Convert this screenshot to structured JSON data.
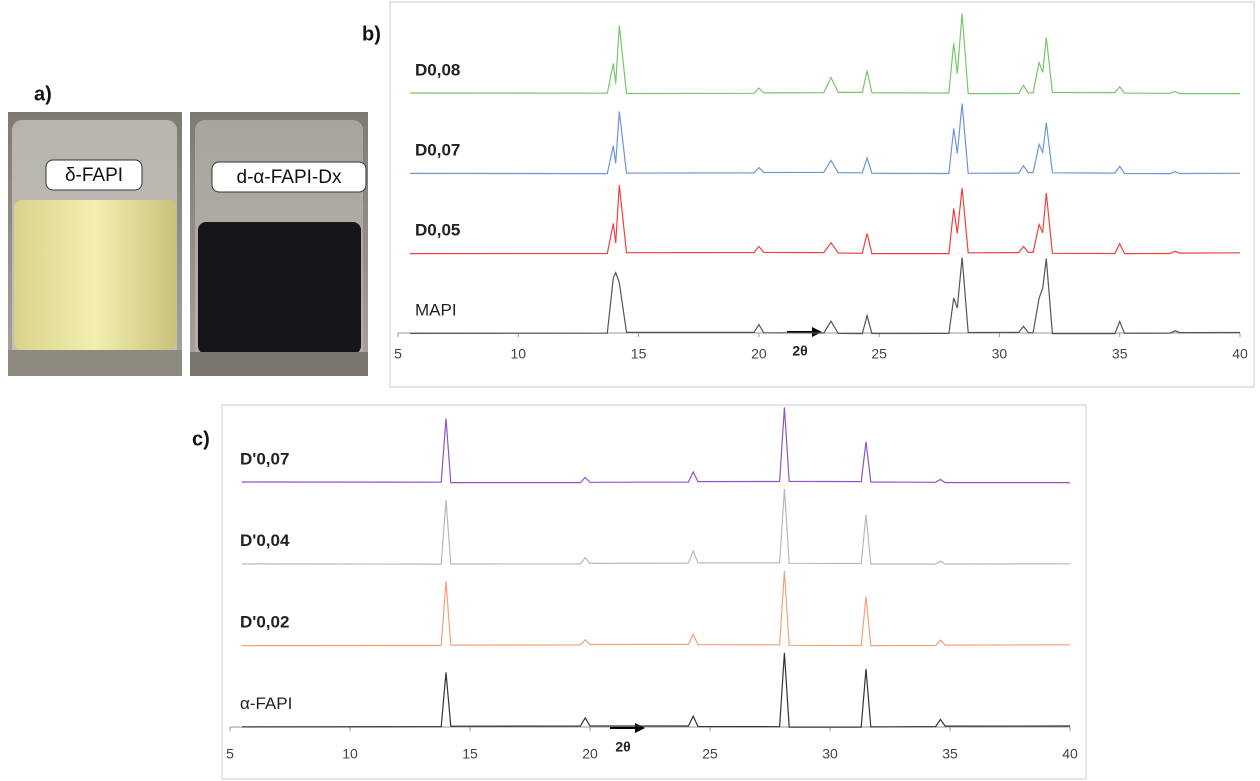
{
  "figure": {
    "panel_label": "a)",
    "photo_labels": [
      "δ-FAPI",
      "d-α-FAPI-Dx"
    ]
  },
  "chart_data": [
    {
      "type": "line",
      "panel_label": "b)",
      "xlabel": "2θ",
      "xlim": [
        5,
        40
      ],
      "xticks": [
        5,
        10,
        15,
        20,
        25,
        30,
        35,
        40
      ],
      "x": [
        5.5,
        13.7,
        13.95,
        14.05,
        14.2,
        14.5,
        19.8,
        20,
        20.2,
        22.7,
        23.0,
        23.3,
        24.3,
        24.5,
        24.7,
        27.9,
        28.1,
        28.25,
        28.45,
        28.7,
        30.8,
        31.0,
        31.2,
        31.4,
        31.65,
        31.8,
        31.95,
        32.2,
        34.8,
        35.0,
        35.2,
        37.1,
        37.3,
        37.5,
        40
      ],
      "series": [
        {
          "name": "D0,08",
          "color": "#7cc46a",
          "values": [
            0,
            0,
            30,
            10,
            68,
            0,
            0,
            5,
            0,
            0,
            15,
            0,
            0,
            22,
            0,
            0,
            50,
            20,
            80,
            0,
            0,
            8,
            0,
            0,
            30,
            20,
            55,
            0,
            0,
            6,
            0,
            0,
            2,
            0,
            0
          ]
        },
        {
          "name": "D0,07",
          "color": "#6f95d6",
          "values": [
            0,
            0,
            28,
            10,
            62,
            0,
            0,
            5,
            0,
            0,
            12,
            0,
            0,
            15,
            0,
            0,
            45,
            20,
            70,
            0,
            0,
            7,
            0,
            0,
            28,
            20,
            50,
            0,
            0,
            7,
            0,
            0,
            2,
            0,
            0
          ]
        },
        {
          "name": "D0,05",
          "color": "#f04040",
          "values": [
            0,
            0,
            30,
            10,
            68,
            0,
            0,
            6,
            0,
            0,
            10,
            0,
            0,
            20,
            0,
            0,
            45,
            20,
            65,
            0,
            0,
            6,
            0,
            0,
            28,
            20,
            60,
            0,
            0,
            10,
            0,
            0,
            2,
            0,
            0
          ]
        },
        {
          "name": "MAPI",
          "color": "#555555",
          "values": [
            0,
            0,
            55,
            60,
            50,
            0,
            0,
            8,
            0,
            0,
            12,
            0,
            0,
            18,
            0,
            0,
            35,
            25,
            75,
            0,
            0,
            6,
            0,
            0,
            35,
            45,
            75,
            0,
            0,
            12,
            0,
            0,
            2,
            0,
            0
          ]
        }
      ]
    },
    {
      "type": "line",
      "panel_label": "c)",
      "xlabel": "2θ",
      "xlim": [
        5,
        40
      ],
      "xticks": [
        5,
        10,
        15,
        20,
        25,
        30,
        35,
        40
      ],
      "x": [
        5.5,
        13.8,
        14.0,
        14.2,
        19.6,
        19.8,
        20.0,
        24.1,
        24.3,
        24.5,
        27.9,
        28.1,
        28.3,
        31.3,
        31.5,
        31.7,
        34.4,
        34.6,
        34.8,
        40
      ],
      "series": [
        {
          "name": "D'0,07",
          "color": "#8e55c4",
          "values": [
            0,
            0,
            64,
            0,
            0,
            5,
            0,
            0,
            10,
            0,
            0,
            74,
            0,
            0,
            40,
            0,
            0,
            3,
            0,
            0
          ]
        },
        {
          "name": "D'0,04",
          "color": "#b8b8b8",
          "values": [
            0,
            0,
            64,
            0,
            0,
            6,
            0,
            0,
            12,
            0,
            0,
            74,
            0,
            0,
            49,
            0,
            0,
            3,
            0,
            0
          ]
        },
        {
          "name": "D'0,02",
          "color": "#f4a07a",
          "values": [
            0,
            0,
            64,
            0,
            0,
            5,
            0,
            0,
            10,
            0,
            0,
            74,
            0,
            0,
            49,
            0,
            0,
            5,
            0,
            0
          ]
        },
        {
          "name": "α-FAPI",
          "color": "#333333",
          "values": [
            0,
            0,
            54,
            0,
            0,
            8,
            0,
            0,
            10,
            0,
            0,
            74,
            0,
            0,
            58,
            0,
            0,
            7,
            0,
            0
          ]
        }
      ]
    }
  ]
}
